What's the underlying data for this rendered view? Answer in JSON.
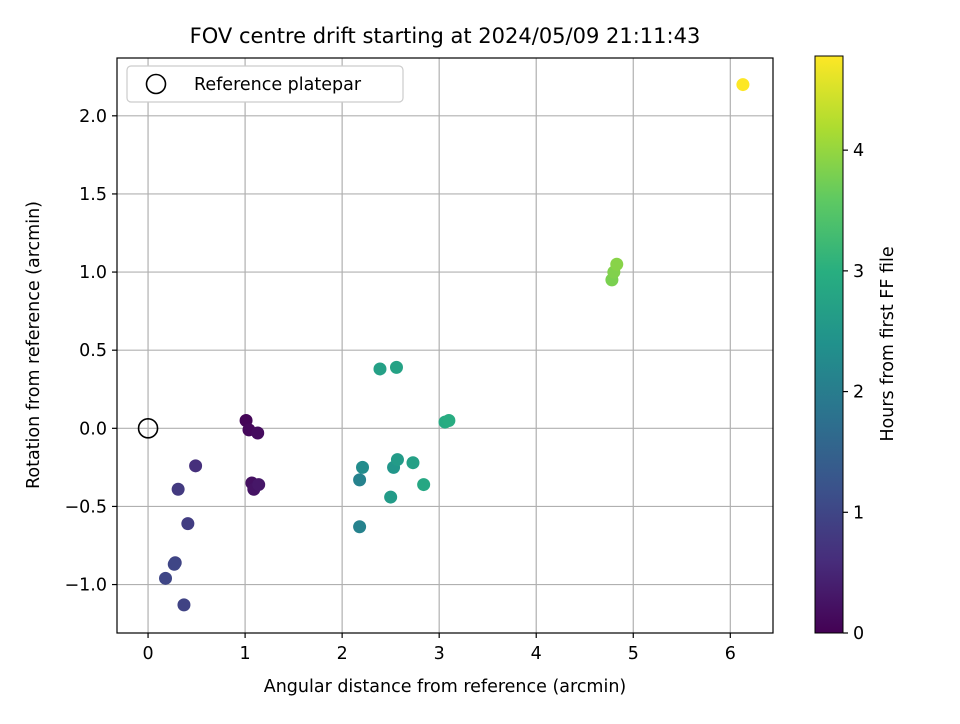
{
  "chart_data": {
    "type": "scatter",
    "title": "FOV centre drift starting at 2024/05/09 21:11:43",
    "xlabel": "Angular distance from reference (arcmin)",
    "ylabel": "Rotation from reference (arcmin)",
    "xlim": [
      -0.32,
      6.44
    ],
    "ylim": [
      -1.31,
      2.37
    ],
    "xticks": [
      0,
      1,
      2,
      3,
      4,
      5,
      6
    ],
    "xtick_labels": [
      "0",
      "1",
      "2",
      "3",
      "4",
      "5",
      "6"
    ],
    "yticks": [
      -1.0,
      -0.5,
      0.0,
      0.5,
      1.0,
      1.5,
      2.0
    ],
    "ytick_labels": [
      "−1.0",
      "−0.5",
      "0.0",
      "0.5",
      "1.0",
      "1.5",
      "2.0"
    ],
    "grid": true,
    "legend": {
      "placement": "top-left",
      "label": "Reference platepar"
    },
    "reference_point": {
      "x": 0.0,
      "y": 0.0
    },
    "colorbar": {
      "label": "Hours from first FF file",
      "range": [
        0,
        4.78
      ],
      "colormap": "viridis",
      "ticks": [
        0,
        1,
        2,
        3,
        4
      ],
      "tick_labels": [
        "0",
        "1",
        "2",
        "3",
        "4"
      ]
    },
    "points": [
      {
        "x": 1.01,
        "y": 0.05,
        "c": 0.05
      },
      {
        "x": 1.04,
        "y": -0.01,
        "c": 0.1
      },
      {
        "x": 1.13,
        "y": -0.03,
        "c": 0.15
      },
      {
        "x": 1.07,
        "y": -0.35,
        "c": 0.2
      },
      {
        "x": 1.09,
        "y": -0.39,
        "c": 0.25
      },
      {
        "x": 1.14,
        "y": -0.36,
        "c": 0.3
      },
      {
        "x": 0.49,
        "y": -0.24,
        "c": 0.65
      },
      {
        "x": 0.31,
        "y": -0.39,
        "c": 0.8
      },
      {
        "x": 0.41,
        "y": -0.61,
        "c": 0.85
      },
      {
        "x": 0.28,
        "y": -0.86,
        "c": 0.95
      },
      {
        "x": 0.27,
        "y": -0.87,
        "c": 1.0
      },
      {
        "x": 0.18,
        "y": -0.96,
        "c": 1.0
      },
      {
        "x": 0.37,
        "y": -1.13,
        "c": 0.95
      },
      {
        "x": 2.18,
        "y": -0.33,
        "c": 2.1
      },
      {
        "x": 2.21,
        "y": -0.25,
        "c": 2.3
      },
      {
        "x": 2.18,
        "y": -0.63,
        "c": 2.1
      },
      {
        "x": 2.39,
        "y": 0.38,
        "c": 2.7
      },
      {
        "x": 2.56,
        "y": 0.39,
        "c": 2.75
      },
      {
        "x": 2.53,
        "y": -0.25,
        "c": 2.5
      },
      {
        "x": 2.57,
        "y": -0.2,
        "c": 2.6
      },
      {
        "x": 2.5,
        "y": -0.44,
        "c": 2.6
      },
      {
        "x": 2.73,
        "y": -0.22,
        "c": 2.7
      },
      {
        "x": 2.84,
        "y": -0.36,
        "c": 2.85
      },
      {
        "x": 3.06,
        "y": 0.04,
        "c": 2.9
      },
      {
        "x": 3.1,
        "y": 0.05,
        "c": 2.95
      },
      {
        "x": 4.78,
        "y": 0.95,
        "c": 3.8
      },
      {
        "x": 4.8,
        "y": 1.0,
        "c": 3.85
      },
      {
        "x": 4.83,
        "y": 1.05,
        "c": 3.9
      },
      {
        "x": 6.13,
        "y": 2.2,
        "c": 4.78
      }
    ]
  }
}
